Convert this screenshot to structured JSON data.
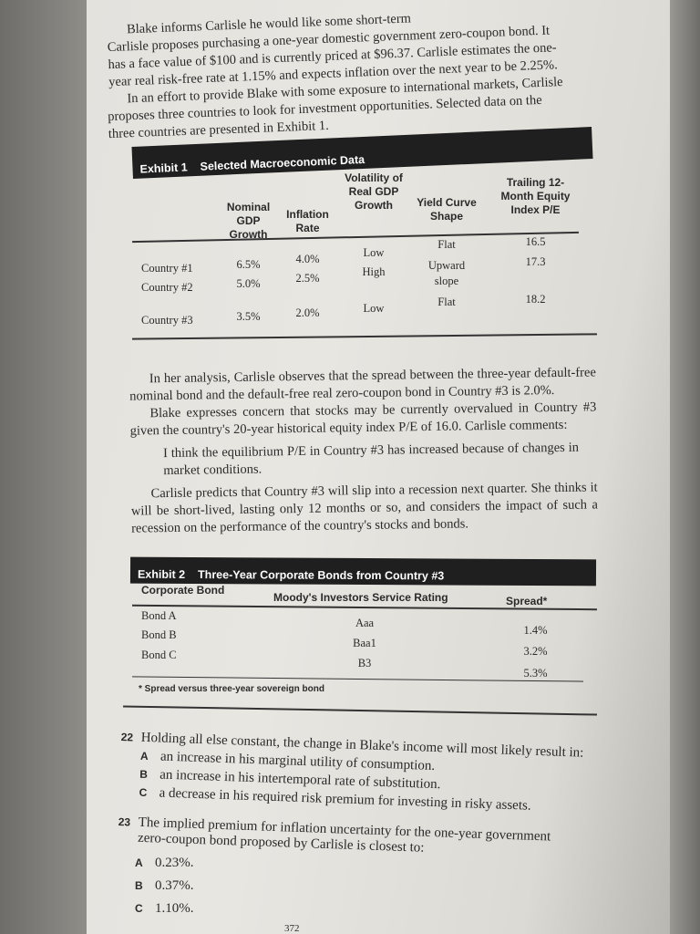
{
  "intro_paragraphs": [
    [
      "Blake informs Carlisle he would like some short-term",
      "Carlisle proposes purchasing a one-year domestic government zero-coupon bond. It",
      "has a face value of $100 and is currently priced at $96.37. Carlisle estimates the one-",
      "year real risk-free rate at 1.15% and expects inflation over the next year to be 2.25%."
    ],
    [
      "In an effort to provide Blake with some exposure to international markets, Carlisle",
      "proposes three countries to look for investment opportunities. Selected data on the",
      "three countries are presented in Exhibit 1."
    ]
  ],
  "exhibit1": {
    "label": "Exhibit 1",
    "title": "Selected Macroeconomic Data",
    "headers": [
      "Nominal GDP Growth",
      "Inflation Rate",
      "Volatility of Real GDP Growth",
      "Yield Curve Shape",
      "Trailing 12-Month Equity Index P/E"
    ],
    "rows": [
      {
        "country": "Country #1",
        "values": [
          "6.5%",
          "4.0%",
          "Low",
          "Flat",
          "16.5"
        ]
      },
      {
        "country": "Country #2",
        "values": [
          "5.0%",
          "2.5%",
          "High",
          "Upward slope",
          "17.3"
        ]
      },
      {
        "country": "Country #3",
        "values": [
          "3.5%",
          "2.0%",
          "Low",
          "Flat",
          "18.2"
        ]
      }
    ]
  },
  "middle_paragraphs": [
    "In her analysis, Carlisle observes that the spread between the three-year default-free nominal bond and the default-free real zero-coupon bond in Country #3 is 2.0%.",
    "Blake expresses concern that stocks may be currently overvalued in Country #3 given the country's 20-year historical equity index P/E of 16.0. Carlisle comments:",
    "I think the equilibrium P/E in Country #3 has increased because of changes in market conditions.",
    "Carlisle predicts that Country #3 will slip into a recession next quarter. She thinks it will be short-lived, lasting only 12 months or so, and considers the impact of such a recession on the performance of the country's stocks and bonds."
  ],
  "exhibit2": {
    "label": "Exhibit 2",
    "title": "Three-Year Corporate Bonds from Country #3",
    "headers": [
      "Corporate Bond",
      "Moody's Investors Service Rating",
      "Spread*"
    ],
    "rows": [
      [
        "Bond A",
        "Aaa",
        "1.4%"
      ],
      [
        "Bond B",
        "Baa1",
        "3.2%"
      ],
      [
        "Bond C",
        "B3",
        "5.3%"
      ]
    ],
    "footnote": "* Spread versus three-year sovereign bond"
  },
  "questions": [
    {
      "number": "22",
      "text": "Holding all else constant, the change in Blake's income will most likely result in:",
      "options": [
        {
          "letter": "A",
          "text": "an increase in his marginal utility of consumption."
        },
        {
          "letter": "B",
          "text": "an increase in his intertemporal rate of substitution."
        },
        {
          "letter": "C",
          "text": "a decrease in his required risk premium for investing in risky assets."
        }
      ]
    },
    {
      "number": "23",
      "text": "The implied premium for inflation uncertainty for the one-year government zero-coupon bond proposed by Carlisle is closest to:",
      "options": [
        {
          "letter": "A",
          "text": "0.23%."
        },
        {
          "letter": "B",
          "text": "0.37%."
        },
        {
          "letter": "C",
          "text": "1.10%."
        }
      ]
    }
  ],
  "page_number": "372"
}
